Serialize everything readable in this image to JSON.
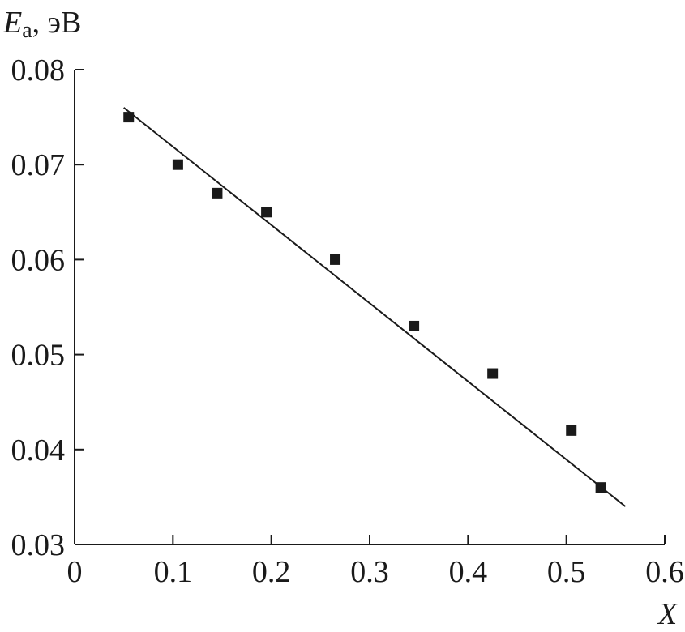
{
  "chart_data": {
    "type": "scatter",
    "xlabel": "X",
    "ylabel_main": "E",
    "ylabel_sub": "a",
    "ylabel_unit": ", эВ",
    "xlim": [
      0,
      0.6
    ],
    "ylim": [
      0.03,
      0.08
    ],
    "x_ticks": [
      0,
      0.1,
      0.2,
      0.3,
      0.4,
      0.5,
      0.6
    ],
    "x_tick_labels": [
      "0",
      "0.1",
      "0.2",
      "0.3",
      "0.4",
      "0.5",
      "0.6"
    ],
    "y_ticks": [
      0.03,
      0.04,
      0.05,
      0.06,
      0.07,
      0.08
    ],
    "y_tick_labels": [
      "0.03",
      "0.04",
      "0.05",
      "0.06",
      "0.07",
      "0.08"
    ],
    "grid": false,
    "series": [
      {
        "marker": "square",
        "x": [
          0.055,
          0.105,
          0.145,
          0.195,
          0.265,
          0.345,
          0.425,
          0.505,
          0.535
        ],
        "y": [
          0.075,
          0.07,
          0.067,
          0.065,
          0.06,
          0.053,
          0.048,
          0.042,
          0.036
        ]
      }
    ],
    "fit_line": {
      "x": [
        0.05,
        0.56
      ],
      "y": [
        0.076,
        0.034
      ]
    },
    "colors": {
      "ink": "#1a1a1a",
      "background": "#ffffff"
    }
  }
}
